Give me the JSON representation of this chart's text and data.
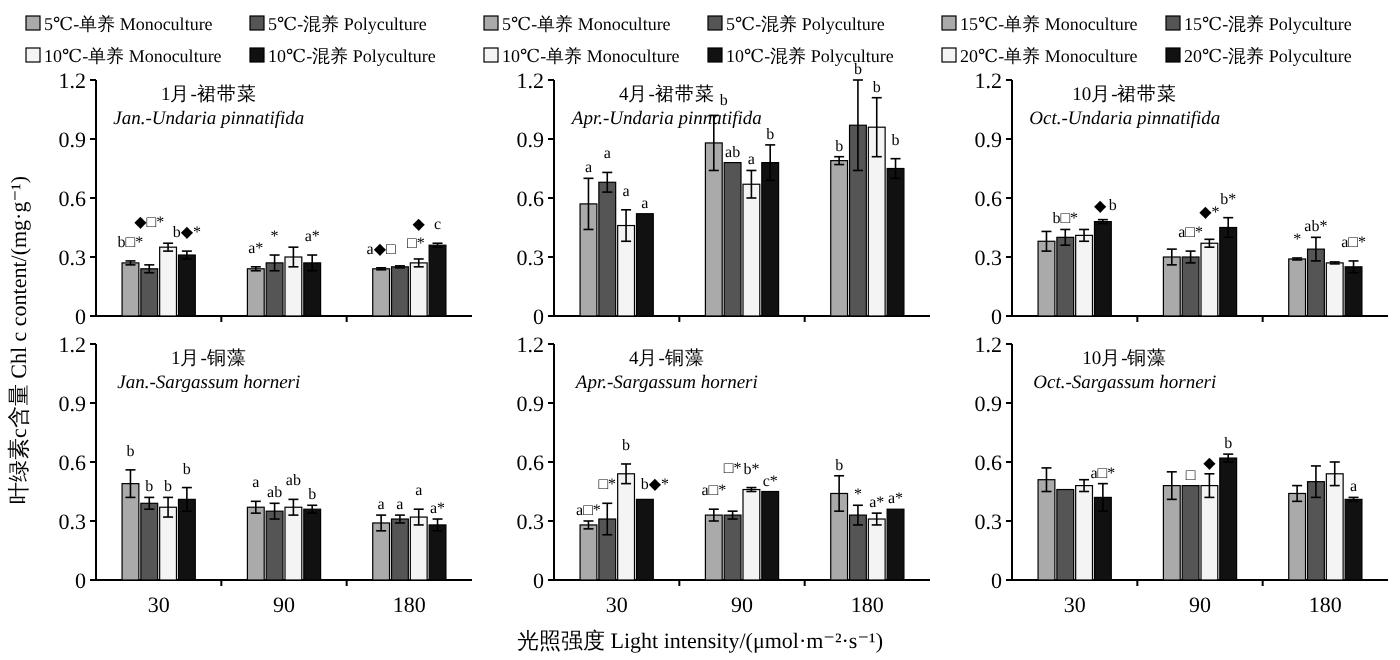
{
  "chart_data": [
    {
      "type": "bar",
      "title": "1月-裙带菜",
      "subtitle": "Jan.-Undaria pinnatifida",
      "categories": [
        "30",
        "90",
        "180"
      ],
      "ylim": [
        0,
        1.2
      ],
      "yticks": [
        0,
        0.3,
        0.6,
        0.9,
        1.2
      ],
      "tick_labels": "y",
      "legend": "top",
      "series": [
        {
          "name": "5℃-单养 Monoculture",
          "color": "#aaaaaa",
          "values": [
            0.27,
            0.24,
            0.24
          ],
          "errors": [
            0.01,
            0.01,
            0.005
          ],
          "value_labels": [
            "b□*",
            "a*",
            "a◆□"
          ]
        },
        {
          "name": "5℃-混养 Polyculture",
          "color": "#555555",
          "values": [
            0.24,
            0.27,
            0.25
          ],
          "errors": [
            0.02,
            0.04,
            0.005
          ],
          "value_labels": [
            "◆□*",
            "*",
            "□*"
          ]
        },
        {
          "name": "10℃-单养 Monoculture",
          "color": "#f4f4f4",
          "values": [
            0.35,
            0.3,
            0.27
          ],
          "errors": [
            0.02,
            0.05,
            0.02
          ],
          "value_labels": [
            null,
            null,
            "◆"
          ]
        },
        {
          "name": "10℃-混养 Polyculture",
          "color": "#111111",
          "values": [
            0.31,
            0.27,
            0.36
          ],
          "errors": [
            0.02,
            0.04,
            0.01
          ],
          "value_labels": [
            "b◆*",
            "a*",
            "c"
          ]
        }
      ]
    },
    {
      "type": "bar",
      "title": "4月-裙带菜",
      "subtitle": "Apr.-Undaria pinnatifida",
      "categories": [
        "30",
        "90",
        "180"
      ],
      "ylim": [
        0,
        1.2
      ],
      "yticks": [
        0,
        0.3,
        0.6,
        0.9,
        1.2
      ],
      "tick_labels": "y",
      "legend": "top",
      "series": [
        {
          "name": "5℃-单养 Monoculture",
          "color": "#aaaaaa",
          "values": [
            0.57,
            0.88,
            0.79
          ],
          "errors": [
            0.13,
            0.14,
            0.02
          ],
          "value_labels": [
            "a",
            "b",
            "b"
          ]
        },
        {
          "name": "5℃-混养 Polyculture",
          "color": "#555555",
          "values": [
            0.68,
            0.78,
            0.97
          ],
          "errors": [
            0.05,
            null,
            0.23
          ],
          "value_labels": [
            "a",
            "ab",
            "b"
          ]
        },
        {
          "name": "10℃-单养 Monoculture",
          "color": "#f4f4f4",
          "values": [
            0.46,
            0.67,
            0.96
          ],
          "errors": [
            0.08,
            0.07,
            0.15
          ],
          "value_labels": [
            "a",
            "a",
            "b"
          ]
        },
        {
          "name": "10℃-混养 Polyculture",
          "color": "#111111",
          "values": [
            0.52,
            0.78,
            0.75
          ],
          "errors": [
            null,
            0.09,
            0.05
          ],
          "value_labels": [
            "a",
            "b",
            "b"
          ]
        }
      ]
    },
    {
      "type": "bar",
      "title": "10月-裙带菜",
      "subtitle": "Oct.-Undaria pinnatifida",
      "categories": [
        "30",
        "90",
        "180"
      ],
      "ylim": [
        0,
        1.2
      ],
      "yticks": [
        0,
        0.3,
        0.6,
        0.9,
        1.2
      ],
      "tick_labels": "y",
      "legend": "top",
      "series": [
        {
          "name": "15℃-单养 Monoculture",
          "color": "#aaaaaa",
          "values": [
            0.38,
            0.3,
            0.29
          ],
          "errors": [
            0.05,
            0.04,
            0.005
          ],
          "value_labels": [
            null,
            null,
            "*"
          ]
        },
        {
          "name": "15℃-混养 Polyculture",
          "color": "#555555",
          "values": [
            0.4,
            0.3,
            0.34
          ],
          "errors": [
            0.04,
            0.03,
            0.06
          ],
          "value_labels": [
            "b□*",
            "a□*",
            "ab*"
          ]
        },
        {
          "name": "20℃-单养 Monoculture",
          "color": "#f4f4f4",
          "values": [
            0.41,
            0.37,
            0.27
          ],
          "errors": [
            0.03,
            0.02,
            0.005
          ],
          "value_labels": [
            "◆",
            "◆*",
            null
          ]
        },
        {
          "name": "20℃-混养 Polyculture",
          "color": "#111111",
          "values": [
            0.48,
            0.45,
            0.25
          ],
          "errors": [
            0.01,
            0.05,
            0.03
          ],
          "value_labels": [
            "b",
            "b*",
            "a□*"
          ]
        }
      ]
    },
    {
      "type": "bar",
      "title": "1月-铜藻",
      "subtitle": "Jan.-Sargassum horneri",
      "ylabel": "叶绿素c含量 Chl c content/(mg·g⁻¹)",
      "categories": [
        "30",
        "90",
        "180"
      ],
      "ylim": [
        0,
        1.2
      ],
      "yticks": [
        0,
        0.3,
        0.6,
        0.9,
        1.2
      ],
      "series": [
        {
          "color": "#aaaaaa",
          "values": [
            0.49,
            0.37,
            0.29
          ],
          "errors": [
            0.07,
            0.03,
            0.04
          ],
          "value_labels": [
            "b",
            "a",
            "a"
          ]
        },
        {
          "color": "#555555",
          "values": [
            0.39,
            0.35,
            0.31
          ],
          "errors": [
            0.03,
            0.04,
            0.02
          ],
          "value_labels": [
            "b",
            "ab",
            "a"
          ]
        },
        {
          "color": "#f4f4f4",
          "values": [
            0.37,
            0.37,
            0.32
          ],
          "errors": [
            0.05,
            0.04,
            0.04
          ],
          "value_labels": [
            "b",
            "ab",
            "a"
          ]
        },
        {
          "color": "#111111",
          "values": [
            0.41,
            0.36,
            0.28
          ],
          "errors": [
            0.06,
            0.02,
            0.03
          ],
          "value_labels": [
            "b",
            "b",
            "a*"
          ]
        }
      ]
    },
    {
      "type": "bar",
      "title": "4月-铜藻",
      "subtitle": "Apr.-Sargassum horneri",
      "xlabel": "光照强度 Light intensity/(μmol·m⁻²·s⁻¹)",
      "categories": [
        "30",
        "90",
        "180"
      ],
      "ylim": [
        0,
        1.2
      ],
      "yticks": [
        0,
        0.3,
        0.6,
        0.9,
        1.2
      ],
      "series": [
        {
          "color": "#aaaaaa",
          "values": [
            0.28,
            0.33,
            0.44
          ],
          "errors": [
            0.02,
            0.03,
            0.09
          ],
          "value_labels": [
            "a□*",
            "a□*",
            "b"
          ]
        },
        {
          "color": "#555555",
          "values": [
            0.31,
            0.33,
            0.33
          ],
          "errors": [
            0.08,
            0.02,
            0.05
          ],
          "value_labels": [
            "□*",
            "□*",
            "*"
          ]
        },
        {
          "color": "#f4f4f4",
          "values": [
            0.54,
            0.46,
            0.31
          ],
          "errors": [
            0.05,
            0.01,
            0.03
          ],
          "value_labels": [
            "b",
            "b*",
            "a*"
          ]
        },
        {
          "color": "#111111",
          "values": [
            0.41,
            0.45,
            0.36
          ],
          "errors": [
            null,
            null,
            null
          ],
          "value_labels": [
            "b◆*",
            "c*",
            "a*"
          ]
        }
      ]
    },
    {
      "type": "bar",
      "title": "10月-铜藻",
      "subtitle": "Oct.-Sargassum horneri",
      "categories": [
        "30",
        "90",
        "180"
      ],
      "ylim": [
        0,
        1.2
      ],
      "yticks": [
        0,
        0.3,
        0.6,
        0.9,
        1.2
      ],
      "series": [
        {
          "color": "#aaaaaa",
          "values": [
            0.51,
            0.48,
            0.44
          ],
          "errors": [
            0.06,
            0.07,
            0.04
          ],
          "value_labels": [
            null,
            null,
            null
          ]
        },
        {
          "color": "#555555",
          "values": [
            0.46,
            0.48,
            0.5
          ],
          "errors": [
            null,
            null,
            0.08
          ],
          "value_labels": [
            null,
            "□",
            null
          ]
        },
        {
          "color": "#f4f4f4",
          "values": [
            0.48,
            0.48,
            0.54
          ],
          "errors": [
            0.03,
            0.06,
            0.06
          ],
          "value_labels": [
            null,
            "◆",
            null
          ]
        },
        {
          "color": "#111111",
          "values": [
            0.42,
            0.62,
            0.41
          ],
          "errors": [
            0.07,
            0.02,
            0.01
          ],
          "value_labels": [
            "a□*",
            "b",
            "a"
          ]
        }
      ]
    }
  ]
}
